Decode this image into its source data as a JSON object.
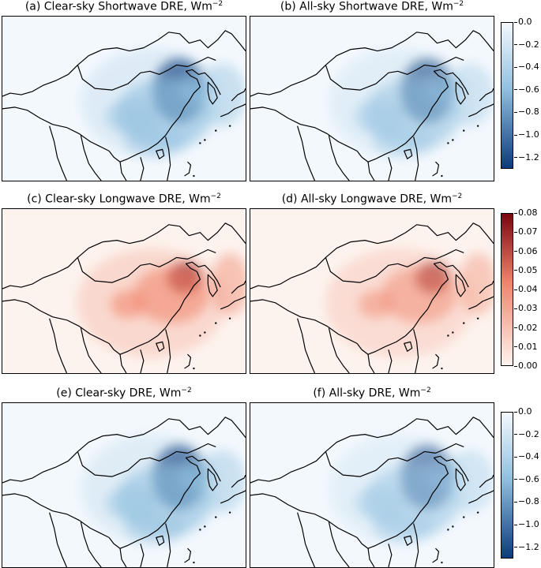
{
  "panels": [
    {
      "id": "a",
      "title": "(a) Clear-sky Shortwave DRE, Wm",
      "unit_exp": "−2",
      "scheme": "blue",
      "intensity": 1.0
    },
    {
      "id": "b",
      "title": "(b) All-sky Shortwave DRE, Wm",
      "unit_exp": "−2",
      "scheme": "blue",
      "intensity": 0.8
    },
    {
      "id": "c",
      "title": "(c) Clear-sky Longwave DRE, Wm",
      "unit_exp": "−2",
      "scheme": "red",
      "intensity": 1.0
    },
    {
      "id": "d",
      "title": "(d) All-sky Longwave DRE, Wm",
      "unit_exp": "−2",
      "scheme": "red",
      "intensity": 0.85
    },
    {
      "id": "e",
      "title": "(e) Clear-sky DRE, Wm",
      "unit_exp": "−2",
      "scheme": "blue",
      "intensity": 0.95
    },
    {
      "id": "f",
      "title": "(f) All-sky DRE, Wm",
      "unit_exp": "−2",
      "scheme": "blue",
      "intensity": 0.75
    }
  ],
  "colorbars": [
    {
      "id": "shortwave",
      "scheme": "blue",
      "range": [
        -1.3,
        0.0
      ],
      "ticks": [
        "0.0",
        "−0.2",
        "−0.4",
        "−0.6",
        "−0.8",
        "−1.0",
        "−1.2"
      ],
      "tick_values": [
        0.0,
        -0.2,
        -0.4,
        -0.6,
        -0.8,
        -1.0,
        -1.2
      ]
    },
    {
      "id": "longwave",
      "scheme": "red",
      "range": [
        0.0,
        0.08
      ],
      "ticks": [
        "0.08",
        "0.07",
        "0.06",
        "0.05",
        "0.04",
        "0.03",
        "0.02",
        "0.01",
        "0.00"
      ],
      "tick_values": [
        0.08,
        0.07,
        0.06,
        0.05,
        0.04,
        0.03,
        0.02,
        0.01,
        0.0
      ]
    },
    {
      "id": "total",
      "scheme": "blue",
      "range": [
        -1.3,
        0.0
      ],
      "ticks": [
        "0.0",
        "−0.2",
        "−0.4",
        "−0.6",
        "−0.8",
        "−1.0",
        "−1.2"
      ],
      "tick_values": [
        0.0,
        -0.2,
        -0.4,
        -0.6,
        -0.8,
        -1.0,
        -1.2
      ]
    }
  ],
  "colors": {
    "blue_low": "#f3f8fd",
    "blue_mid": "#92c1e0",
    "blue_high": "#0a3b7c",
    "red_low": "#fdf3ee",
    "red_mid": "#f0836a",
    "red_high": "#7a0510",
    "border": "#000000"
  }
}
